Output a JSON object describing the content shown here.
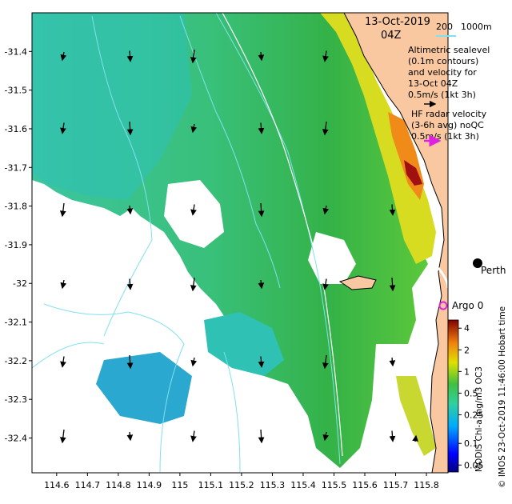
{
  "date": "13-Oct-2019",
  "hour": "04Z",
  "scale_bar": {
    "left_label": "200",
    "right_label": "1000m"
  },
  "altimetry_legend": {
    "lines": [
      "Altimetric sealevel",
      "(0.1m contours)",
      "and velocity for",
      "13-Oct 04Z"
    ],
    "arrow_label": "0.5m/s (1kt 3h)"
  },
  "hf_radar_legend": {
    "lines": [
      "HF radar velocity",
      "(3-6h avg) noQC"
    ],
    "arrow_label": "0.5m/s (1kt 3h)"
  },
  "places": {
    "city": "Perth",
    "argo": "Argo 0"
  },
  "side_label": "© IMOS 23-Oct-2019 11:46:00 Hobart time",
  "colorbar": {
    "title": "MODIS Chl-a mg/m3 OC3",
    "ticks": [
      "4",
      "2",
      "1",
      "0.5",
      "0.25",
      "0.1",
      "0.05"
    ]
  },
  "axes": {
    "lon_ticks": [
      "114.6",
      "114.7",
      "114.8",
      "114.9",
      "115",
      "115.1",
      "115.2",
      "115.3",
      "115.4",
      "115.5",
      "115.6",
      "115.7",
      "115.8"
    ],
    "lat_ticks": [
      "-31.4",
      "-31.5",
      "-31.6",
      "-31.7",
      "-31.8",
      "-31.9",
      "-32",
      "-32.1",
      "-32.2",
      "-32.3",
      "-32.4"
    ],
    "lon_range": [
      114.52,
      115.87
    ],
    "lat_range": [
      -32.49,
      -31.3
    ]
  },
  "colors": {
    "land": "#F9C8A0",
    "chl_low": "#2B9BD8",
    "chl_mid": "#3CBF6A",
    "chl_high": "#B2161A",
    "contour": "#7FE0F0",
    "argo": "#E020E0",
    "hf_arrow": "#E020E0"
  }
}
